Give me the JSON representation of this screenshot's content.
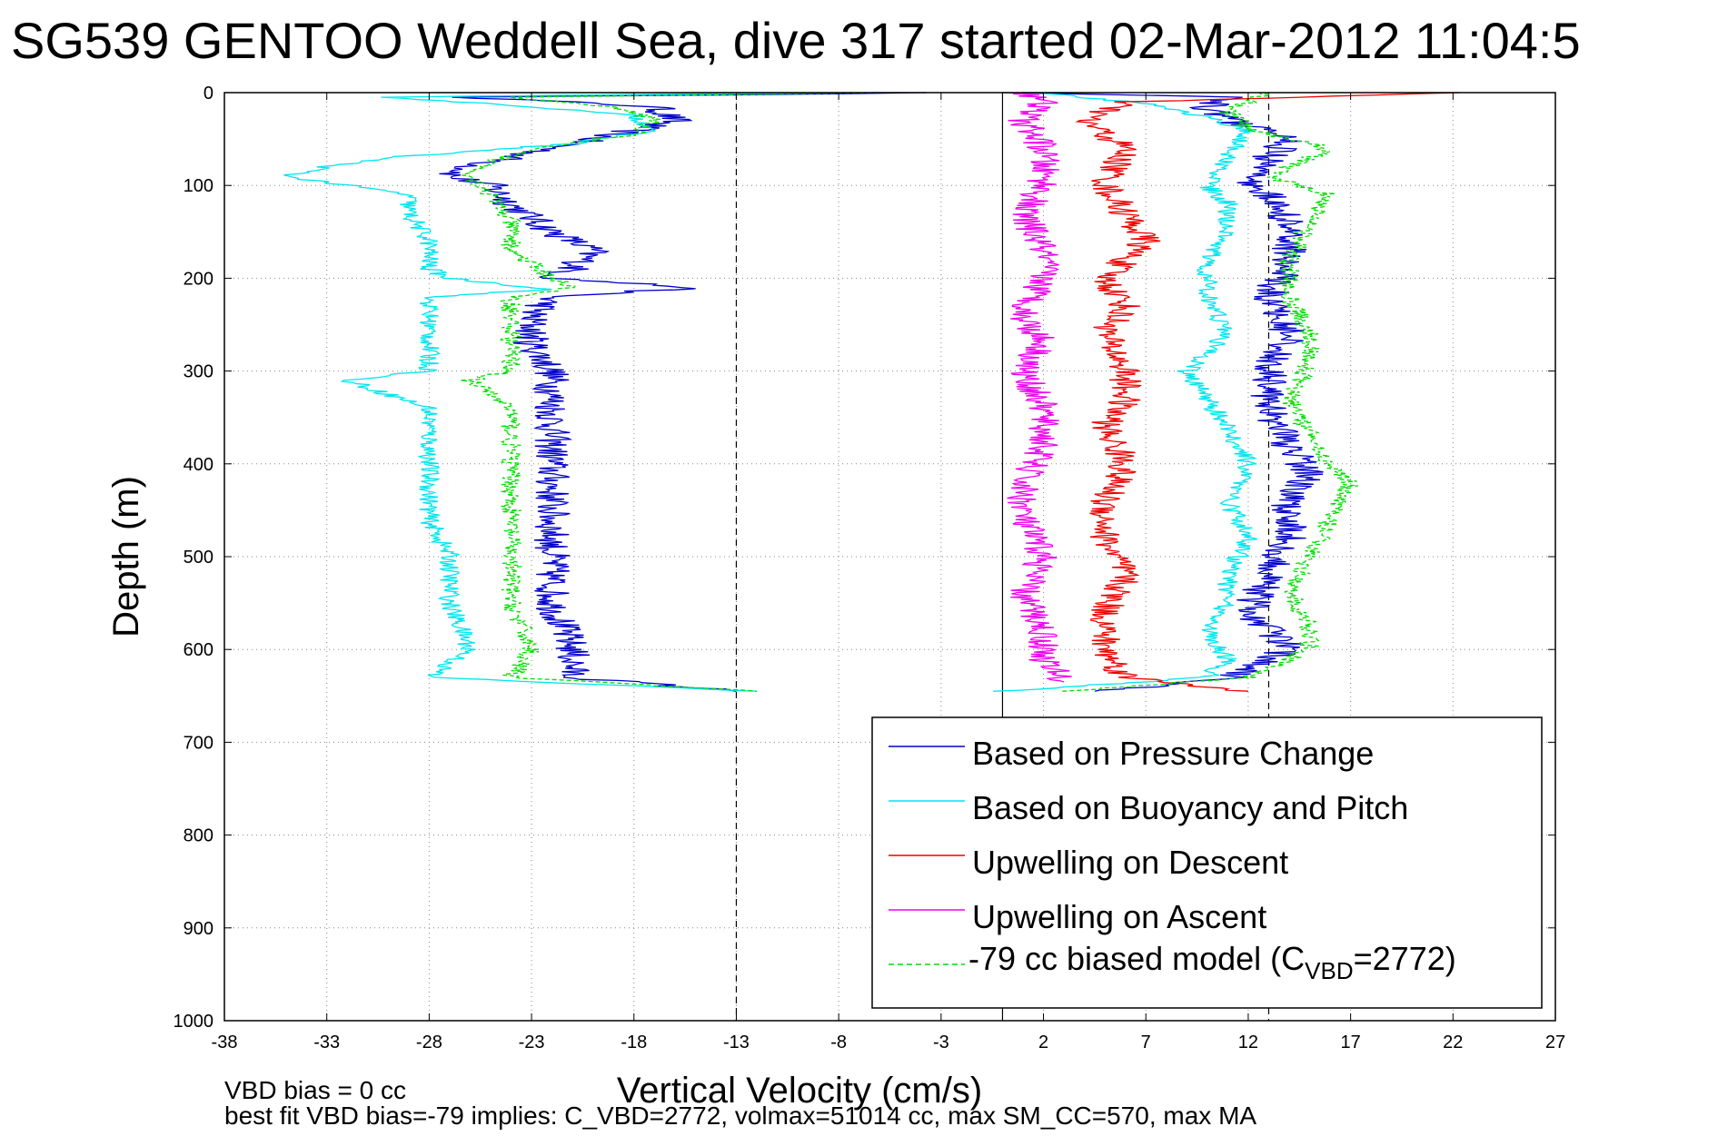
{
  "chart_data": {
    "type": "line",
    "title": "SG539 GENTOO Weddell Sea, dive 317 started 02-Mar-2012 11:04:5",
    "xlabel": "Vertical Velocity (cm/s)",
    "ylabel": "Depth (m)",
    "xlim": [
      -38,
      27
    ],
    "ylim": [
      0,
      1000
    ],
    "y_reversed": true,
    "grid": true,
    "xticks": [
      -38,
      -33,
      -28,
      -23,
      -18,
      -13,
      -8,
      -3,
      2,
      7,
      12,
      17,
      22,
      27
    ],
    "xtick_labels": [
      "-38",
      "-33",
      "-28",
      "-23",
      "-18",
      "-13",
      "-8",
      "-3",
      "2",
      "7",
      "12",
      "17",
      "22",
      "27"
    ],
    "yticks": [
      0,
      100,
      200,
      300,
      400,
      500,
      600,
      700,
      800,
      900,
      1000
    ],
    "ytick_labels": [
      "0",
      "100",
      "200",
      "300",
      "400",
      "500",
      "600",
      "700",
      "800",
      "900",
      "1000"
    ],
    "reference_lines": [
      {
        "x": -13,
        "style": "dashed",
        "color": "#000000"
      },
      {
        "x": 0,
        "style": "solid",
        "color": "#000000"
      },
      {
        "x": 13,
        "style": "dashed",
        "color": "#000000"
      }
    ],
    "legend_position": "lower-right",
    "legend": [
      {
        "label": "Based on Pressure Change",
        "color": "#0000cc",
        "style": "solid"
      },
      {
        "label": "Based on Buoyancy and Pitch",
        "color": "#00e5ee",
        "style": "solid"
      },
      {
        "label": "Upwelling on Descent",
        "color": "#ee0000",
        "style": "solid"
      },
      {
        "label": "Upwelling on Ascent",
        "color": "#ee00ee",
        "style": "solid"
      },
      {
        "label": "-79 cc biased model (C",
        "subscript": "VBD",
        "suffix": "=2772)",
        "color": "#00dd00",
        "style": "dashed"
      }
    ],
    "series": [
      {
        "name": "Based on Pressure Change",
        "color": "#0000cc",
        "dash": false,
        "depth": [
          0,
          5,
          15,
          30,
          45,
          60,
          70,
          80,
          90,
          100,
          120,
          150,
          170,
          190,
          200,
          210,
          220,
          240,
          270,
          300,
          330,
          370,
          400,
          450,
          500,
          550,
          600,
          630,
          645
        ],
        "values": [
          -3,
          -26,
          -17,
          -16,
          -19,
          -22,
          -24,
          -26,
          -27,
          -25,
          -24,
          -22,
          -20,
          -21,
          -22,
          -15,
          -22,
          -23,
          -23,
          -22,
          -22,
          -22,
          -22,
          -22,
          -22,
          -22,
          -21,
          -21,
          -13
        ],
        "jitter": 0.9
      },
      {
        "name": "Based on Pressure Change (ascent)",
        "color": "#0000cc",
        "dash": false,
        "depth": [
          645,
          630,
          600,
          560,
          520,
          480,
          440,
          410,
          380,
          340,
          300,
          260,
          220,
          180,
          140,
          110,
          90,
          70,
          50,
          30,
          15,
          5,
          0
        ],
        "values": [
          5,
          11,
          14,
          12,
          13,
          14,
          14,
          15,
          14,
          13,
          13,
          14,
          13,
          14,
          14,
          13,
          12,
          13,
          14,
          11,
          10,
          11,
          0
        ],
        "jitter": 0.9
      },
      {
        "name": "Based on Buoyancy and Pitch",
        "color": "#00e5ee",
        "dash": false,
        "depth": [
          0,
          5,
          15,
          25,
          40,
          55,
          70,
          80,
          90,
          110,
          130,
          160,
          190,
          200,
          212,
          220,
          250,
          280,
          300,
          310,
          340,
          380,
          420,
          460,
          500,
          550,
          600,
          630,
          645
        ],
        "values": [
          -10,
          -30,
          -23,
          -18,
          -17,
          -21,
          -30,
          -33,
          -35,
          -29,
          -29,
          -28,
          -28,
          -27,
          -22,
          -28,
          -28,
          -28,
          -28,
          -32,
          -28,
          -28,
          -28,
          -28,
          -27,
          -27,
          -26,
          -28,
          -12
        ],
        "jitter": 0.5
      },
      {
        "name": "Based on Buoyancy and Pitch (ascent)",
        "color": "#00e5ee",
        "dash": false,
        "depth": [
          645,
          630,
          610,
          580,
          550,
          520,
          480,
          440,
          400,
          360,
          330,
          300,
          260,
          220,
          180,
          150,
          120,
          100,
          70,
          40,
          15,
          0
        ],
        "values": [
          0,
          10,
          11,
          10,
          11,
          11,
          12,
          11,
          12,
          11,
          10,
          9,
          11,
          10,
          10,
          11,
          11,
          10,
          11,
          12,
          8,
          2
        ],
        "jitter": 0.5
      },
      {
        "name": "Upwelling on Descent",
        "color": "#ee0000",
        "dash": false,
        "depth": [
          0,
          10,
          30,
          60,
          100,
          130,
          160,
          180,
          200,
          230,
          260,
          300,
          330,
          360,
          400,
          440,
          480,
          520,
          560,
          600,
          630,
          645
        ],
        "values": [
          22,
          6,
          4,
          6,
          5,
          6,
          7,
          6,
          5,
          6,
          5,
          6,
          6,
          5,
          6,
          5,
          5,
          6,
          5,
          5,
          6,
          12
        ],
        "jitter": 0.8
      },
      {
        "name": "Upwelling on Ascent",
        "color": "#ee00ee",
        "dash": false,
        "depth": [
          0,
          10,
          30,
          60,
          100,
          130,
          170,
          200,
          240,
          270,
          300,
          340,
          380,
          420,
          460,
          500,
          540,
          580,
          610,
          635
        ],
        "values": [
          1,
          2,
          1,
          2,
          2,
          1,
          2,
          2,
          1,
          2,
          1,
          2,
          2,
          1,
          1,
          2,
          1,
          2,
          2,
          3
        ],
        "jitter": 0.8
      },
      {
        "name": "-79 cc biased model (C_VBD=2772)",
        "color": "#00dd00",
        "dash": true,
        "depth": [
          0,
          5,
          15,
          30,
          45,
          60,
          75,
          90,
          110,
          140,
          170,
          200,
          210,
          220,
          240,
          270,
          300,
          310,
          340,
          380,
          420,
          460,
          500,
          550,
          600,
          630,
          645
        ],
        "values": [
          -6,
          -24,
          -19,
          -17,
          -18,
          -23,
          -25,
          -26,
          -25,
          -24,
          -24,
          -22,
          -21,
          -24,
          -24,
          -24,
          -24,
          -26,
          -24,
          -24,
          -24,
          -24,
          -24,
          -24,
          -23,
          -24,
          -12
        ],
        "jitter": 0.5
      },
      {
        "name": "-79 cc biased model (ascent)",
        "color": "#00dd00",
        "dash": true,
        "depth": [
          645,
          630,
          600,
          570,
          540,
          500,
          460,
          420,
          400,
          370,
          330,
          290,
          260,
          220,
          180,
          140,
          110,
          90,
          60,
          40,
          20,
          0
        ],
        "values": [
          3,
          12,
          15,
          15,
          14,
          15,
          16,
          17,
          16,
          15,
          14,
          15,
          15,
          14,
          14,
          15,
          16,
          13,
          16,
          12,
          11,
          13
        ],
        "jitter": 0.5
      }
    ],
    "annotations": [
      "VBD bias = 0 cc",
      "best fit VBD bias=-79 implies: C_VBD=2772, volmax=51014 cc, max SM_CC=570, max MA"
    ]
  }
}
